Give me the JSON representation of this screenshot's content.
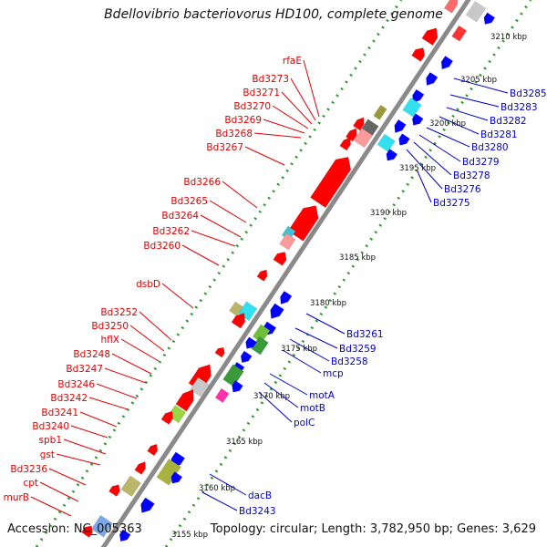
{
  "title": "Bdellovibrio bacteriovorus HD100, complete genome",
  "footer": {
    "accession": "Accession: NC_005363",
    "topology": "Topology: circular; Length: 3,782,950 bp; Genes: 3,629"
  },
  "colors": {
    "backbone": "#8a8a8a",
    "forward_label": "#e00000",
    "reverse_label": "#0000c8",
    "forward_gene": "#ff0000",
    "reverse_gene": "#0000ff",
    "dots": "#2e9a2e",
    "ticks": "#1a7a1a"
  },
  "kbp_ticks": [
    "3155 kbp",
    "3160 kbp",
    "3165 kbp",
    "3170 kbp",
    "3175 kbp",
    "3180 kbp",
    "3185 kbp",
    "3190 kbp",
    "3195 kbp",
    "3200 kbp",
    "3205 kbp",
    "3210 kbp"
  ],
  "forward_labels": [
    "rfaE",
    "Bd3273",
    "Bd3271",
    "Bd3270",
    "Bd3269",
    "Bd3268",
    "Bd3267",
    "Bd3266",
    "Bd3265",
    "Bd3264",
    "Bd3262",
    "Bd3260",
    "dsbD",
    "Bd3252",
    "Bd3250",
    "hflX",
    "Bd3248",
    "Bd3247",
    "Bd3246",
    "Bd3242",
    "Bd3241",
    "Bd3240",
    "spb1",
    "gst",
    "Bd3236",
    "cpt",
    "murB"
  ],
  "reverse_labels_top": [
    "Bd3285",
    "Bd3283",
    "Bd3282",
    "Bd3281",
    "Bd3280",
    "Bd3279",
    "Bd3278",
    "Bd3276",
    "Bd3275"
  ],
  "reverse_labels_mid": [
    "Bd3261",
    "Bd3259",
    "Bd3258",
    "mcp"
  ],
  "reverse_labels_low": [
    "motA",
    "motB",
    "polC"
  ],
  "reverse_labels_bottom": [
    "dacB",
    "Bd3243"
  ]
}
